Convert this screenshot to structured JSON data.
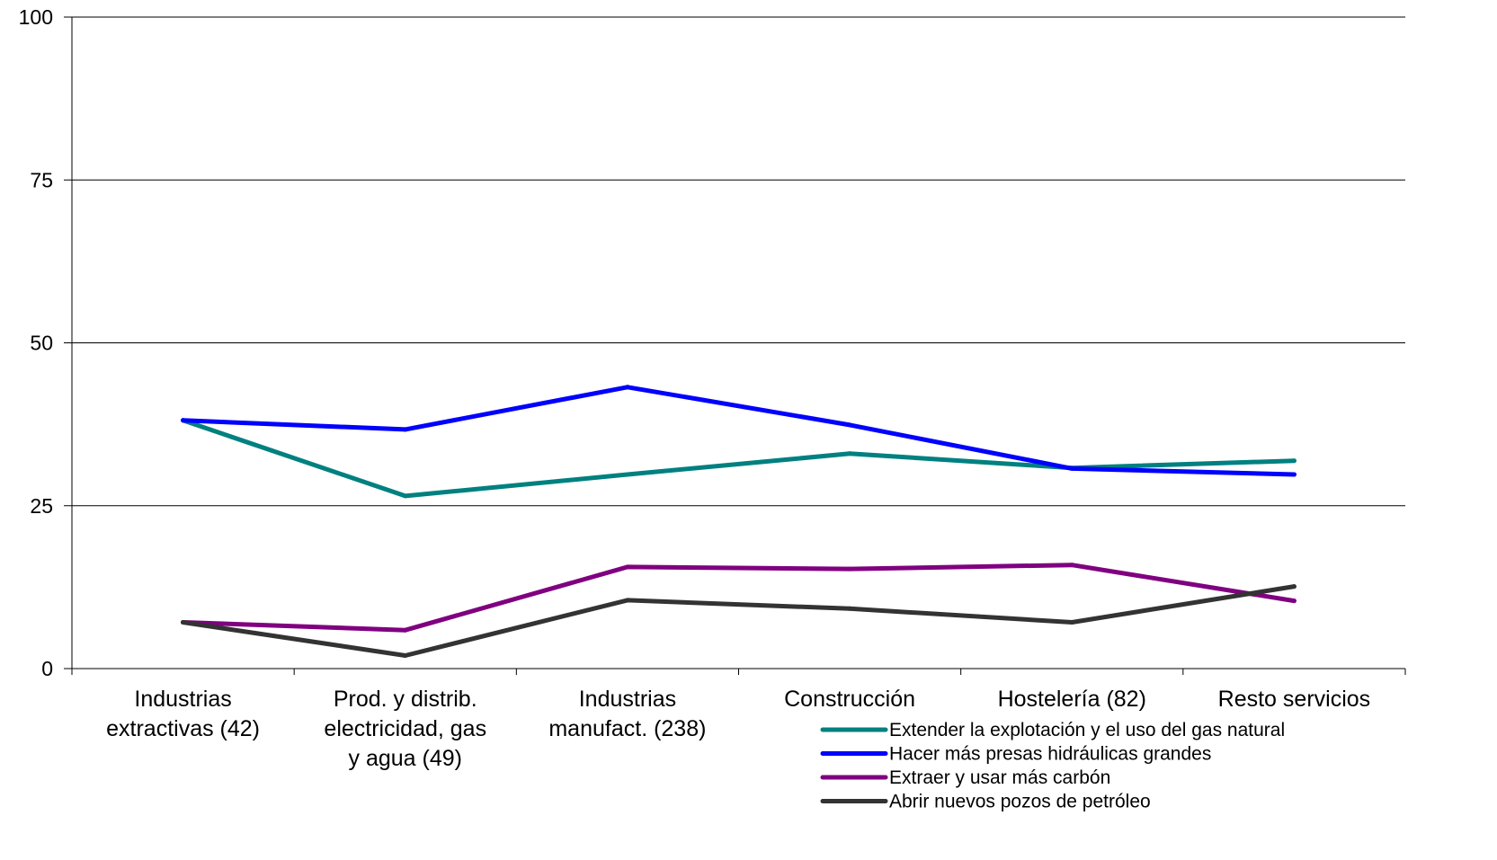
{
  "chart_data": {
    "type": "line",
    "categories": [
      [
        "Industrias",
        "extractivas (42)"
      ],
      [
        "Prod. y distrib.",
        "electricidad, gas",
        "y agua (49)"
      ],
      [
        "Industrias",
        "manufact. (238)"
      ],
      [
        "Construcción"
      ],
      [
        "Hostelería (82)"
      ],
      [
        "Resto servicios"
      ]
    ],
    "ylim": [
      0,
      100
    ],
    "yticks": [
      0,
      25,
      50,
      75,
      100
    ],
    "grid": true,
    "legend_position": "bottom-right",
    "series": [
      {
        "name": "Extender la explotación y el uso del gas natural",
        "color": "#008080",
        "values": [
          38.1,
          26.5,
          29.8,
          33.0,
          30.8,
          31.9
        ]
      },
      {
        "name": "Hacer más presas hidráulicas grandes",
        "color": "#0000FF",
        "values": [
          38.1,
          36.7,
          43.2,
          37.4,
          30.7,
          29.8
        ]
      },
      {
        "name": "Extraer y usar más carbón",
        "color": "#800080",
        "values": [
          7.1,
          5.9,
          15.6,
          15.3,
          15.9,
          10.4
        ]
      },
      {
        "name": "Abrir nuevos pozos de petróleo",
        "color": "#333333",
        "values": [
          7.1,
          2.0,
          10.5,
          9.2,
          7.1,
          12.6
        ]
      }
    ]
  }
}
